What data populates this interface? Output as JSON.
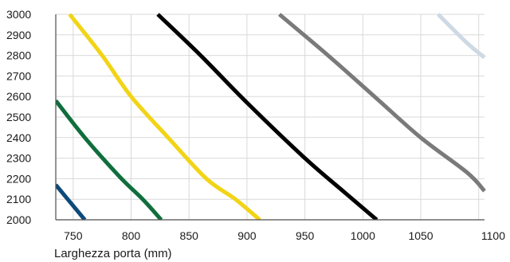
{
  "chart_data": {
    "type": "line",
    "title": "",
    "xlabel": "Larghezza porta (mm)",
    "ylabel": "",
    "xlim": [
      735,
      1105
    ],
    "ylim": [
      2000,
      3000
    ],
    "x_ticks": [
      "750",
      "800",
      "850",
      "900",
      "950",
      "1000",
      "1050",
      "1100"
    ],
    "y_ticks": [
      "2000",
      "2100",
      "2200",
      "2300",
      "2400",
      "2500",
      "2600",
      "2700",
      "2800",
      "2900",
      "3000"
    ],
    "grid": true,
    "legend": "none",
    "series": [
      {
        "color": "#0d4a7a",
        "points": [
          [
            735,
            2170
          ],
          [
            760,
            2000
          ]
        ]
      },
      {
        "color": "#0f6e3c",
        "points": [
          [
            735,
            2580
          ],
          [
            760,
            2400
          ],
          [
            790,
            2210
          ],
          [
            810,
            2100
          ],
          [
            826,
            2000
          ]
        ]
      },
      {
        "color": "#f2d416",
        "points": [
          [
            747,
            3000
          ],
          [
            775,
            2800
          ],
          [
            800,
            2600
          ],
          [
            832,
            2400
          ],
          [
            865,
            2200
          ],
          [
            890,
            2100
          ],
          [
            911,
            2000
          ]
        ]
      },
      {
        "color": "#000000",
        "points": [
          [
            823,
            3000
          ],
          [
            860,
            2800
          ],
          [
            900,
            2570
          ],
          [
            950,
            2300
          ],
          [
            985,
            2130
          ],
          [
            1012,
            2000
          ]
        ]
      },
      {
        "color": "#7a7a7a",
        "points": [
          [
            928,
            3000
          ],
          [
            970,
            2800
          ],
          [
            1010,
            2600
          ],
          [
            1050,
            2400
          ],
          [
            1090,
            2230
          ],
          [
            1105,
            2140
          ]
        ]
      },
      {
        "color": "#cdd9e3",
        "points": [
          [
            1065,
            3000
          ],
          [
            1090,
            2860
          ],
          [
            1105,
            2790
          ]
        ]
      }
    ]
  }
}
